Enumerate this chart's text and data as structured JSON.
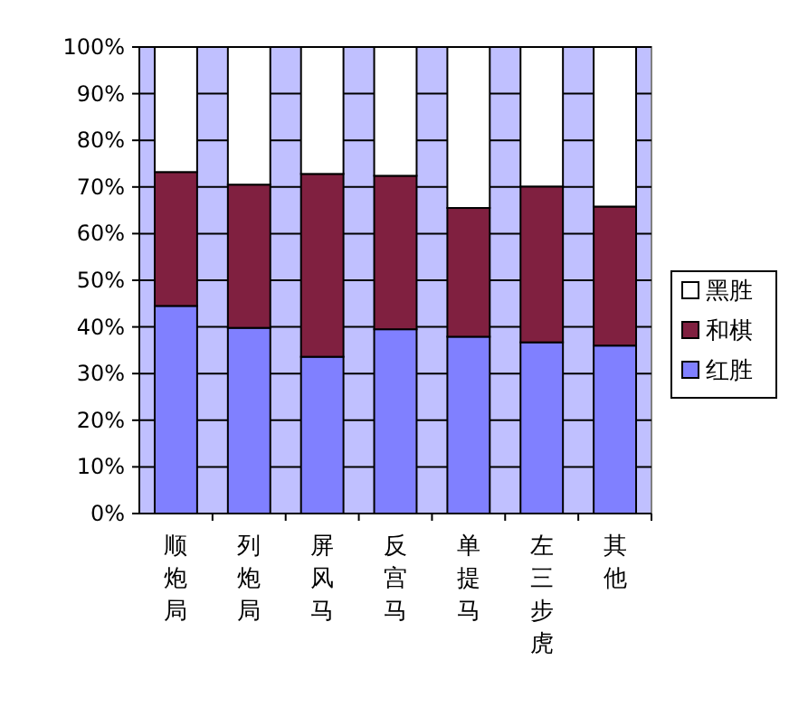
{
  "chart_data": {
    "type": "bar",
    "stacked": true,
    "categories": [
      "顺炮局",
      "列炮局",
      "屏风马",
      "反宫马",
      "单提马",
      "左三步虎",
      "其他"
    ],
    "series": [
      {
        "name": "红胜",
        "color": "#8080ff",
        "values": [
          44.5,
          39.8,
          33.6,
          39.5,
          37.9,
          36.7,
          36.0
        ]
      },
      {
        "name": "和棋",
        "color": "#802040",
        "values": [
          28.7,
          30.7,
          39.2,
          32.9,
          27.6,
          33.4,
          29.8
        ]
      },
      {
        "name": "黑胜",
        "color": "#ffffff",
        "values": [
          26.8,
          29.5,
          27.2,
          27.6,
          34.5,
          29.9,
          34.2
        ]
      }
    ],
    "ylim": [
      0,
      100
    ],
    "yticks": [
      {
        "value": 0,
        "label": "0%"
      },
      {
        "value": 10,
        "label": "10%"
      },
      {
        "value": 20,
        "label": "20%"
      },
      {
        "value": 30,
        "label": "30%"
      },
      {
        "value": 40,
        "label": "40%"
      },
      {
        "value": 50,
        "label": "50%"
      },
      {
        "value": 60,
        "label": "60%"
      },
      {
        "value": 70,
        "label": "70%"
      },
      {
        "value": 80,
        "label": "80%"
      },
      {
        "value": 90,
        "label": "90%"
      },
      {
        "value": 100,
        "label": "100%"
      }
    ],
    "grid": "y",
    "legend": "right"
  }
}
